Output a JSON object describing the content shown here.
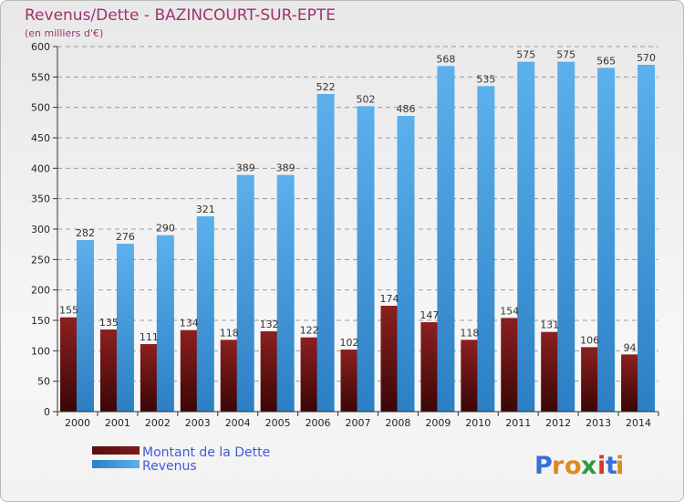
{
  "chart_data": {
    "type": "bar",
    "title": "Revenus/Dette - BAZINCOURT-SUR-EPTE",
    "subtitle": "(en milliers d'€)",
    "categories": [
      "2000",
      "2001",
      "2002",
      "2003",
      "2004",
      "2005",
      "2006",
      "2007",
      "2008",
      "2009",
      "2010",
      "2011",
      "2012",
      "2013",
      "2014"
    ],
    "series": [
      {
        "name": "Montant de la Dette",
        "color": "#7a1a1a",
        "values": [
          155,
          135,
          111,
          134,
          118,
          132,
          122,
          102,
          174,
          147,
          118,
          154,
          131,
          106,
          94
        ]
      },
      {
        "name": "Revenus",
        "color": "#4a9ee0",
        "values": [
          282,
          276,
          290,
          321,
          389,
          389,
          522,
          502,
          486,
          568,
          535,
          575,
          575,
          565,
          570
        ]
      }
    ],
    "data_labels": [
      [
        "155",
        "135",
        "111",
        "134",
        "118",
        "132",
        "122",
        "102",
        "174",
        "147",
        "118",
        "154",
        "131",
        "106",
        "94"
      ],
      [
        "282",
        "276",
        "290",
        "321",
        "389",
        "389",
        "522",
        "502",
        "486",
        "568",
        "535",
        "575",
        "575",
        "565",
        "570"
      ]
    ],
    "ylim": [
      0,
      600
    ],
    "yticks": [
      0,
      50,
      100,
      150,
      200,
      250,
      300,
      350,
      400,
      450,
      500,
      550,
      600
    ],
    "xlabel": "",
    "ylabel": "",
    "grid": true,
    "legend": "bottom-left"
  },
  "logo": {
    "text": "Proxiti",
    "letters": [
      "P",
      "r",
      "o",
      "x",
      "i",
      "t",
      "i"
    ],
    "colors": [
      "#3a6fd8",
      "#e08a1a",
      "#e08a1a",
      "#2e9b3a",
      "#d23a2a",
      "#3a6fd8",
      "#e08a1a"
    ]
  }
}
